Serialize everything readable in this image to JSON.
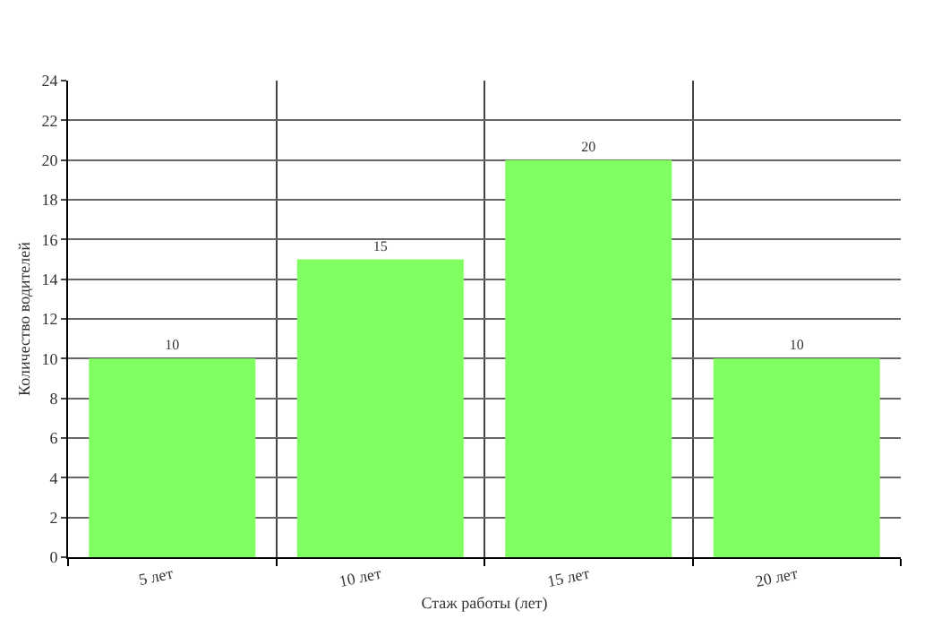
{
  "chart_data": {
    "type": "bar",
    "xlabel": "Стаж работы (лет)",
    "ylabel": "Количество водителей",
    "categories": [
      "5 лет",
      "10 лет",
      "15 лет",
      "20 лет"
    ],
    "values": [
      10,
      15,
      20,
      10
    ],
    "color": "#80ff60",
    "ylim": [
      0,
      24
    ],
    "yticks": [
      0,
      2,
      4,
      6,
      8,
      10,
      12,
      14,
      16,
      18,
      20,
      22,
      24
    ],
    "grid": true,
    "data_labels": true
  }
}
